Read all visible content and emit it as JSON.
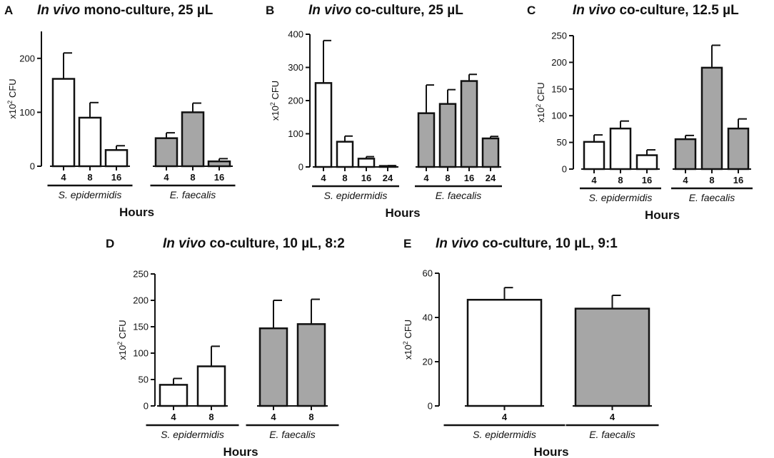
{
  "figure": {
    "bar_colors": {
      "S. epidermidis": "#ffffff",
      "E. faecalis": "#a6a6a6"
    }
  },
  "chart_data": [
    {
      "panel": "A",
      "type": "bar",
      "title": "In vivo mono-culture, 25 µL",
      "title_italic": "In vivo",
      "title_rest": " mono-culture, 25 µL",
      "xlabel": "Hours",
      "ylabel_main": "x10",
      "ylabel_sup": "2",
      "ylabel_tail": " CFU",
      "ylim": [
        0,
        250
      ],
      "yticks": [
        0,
        100,
        200
      ],
      "ytick_labels": [
        "0",
        "100",
        "200"
      ],
      "groups": [
        {
          "name": "S. epidermidis",
          "categories": [
            "4",
            "8",
            "16"
          ],
          "values": [
            162,
            90,
            30
          ],
          "errors": [
            48,
            28,
            8
          ]
        },
        {
          "name": "E. faecalis",
          "categories": [
            "4",
            "8",
            "16"
          ],
          "values": [
            52,
            100,
            9
          ],
          "errors": [
            10,
            17,
            5
          ]
        }
      ]
    },
    {
      "panel": "B",
      "type": "bar",
      "title": "In vivo co-culture,  25 µL",
      "title_italic": "In vivo",
      "title_rest": " co-culture,  25 µL",
      "xlabel": "Hours",
      "ylabel_main": "x10",
      "ylabel_sup": "2",
      "ylabel_tail": " CFU",
      "ylim": [
        0,
        400
      ],
      "yticks": [
        0,
        100,
        200,
        300,
        400
      ],
      "ytick_labels": [
        "0",
        "100",
        "200",
        "300",
        "400"
      ],
      "groups": [
        {
          "name": "S. epidermidis",
          "categories": [
            "4",
            "8",
            "16",
            "24"
          ],
          "values": [
            253,
            76,
            25,
            3
          ],
          "errors": [
            128,
            17,
            6,
            1
          ]
        },
        {
          "name": "E. faecalis",
          "categories": [
            "4",
            "8",
            "16",
            "24"
          ],
          "values": [
            162,
            190,
            259,
            86
          ],
          "errors": [
            85,
            43,
            20,
            6
          ]
        }
      ]
    },
    {
      "panel": "C",
      "type": "bar",
      "title": "In vivo co-culture, 12.5 µL",
      "title_italic": "In vivo",
      "title_rest": " co-culture, 12.5 µL",
      "xlabel": "Hours",
      "ylabel_main": "x10",
      "ylabel_sup": "2",
      "ylabel_tail": " CFU",
      "ylim": [
        0,
        250
      ],
      "yticks": [
        0,
        50,
        100,
        150,
        200,
        250
      ],
      "ytick_labels": [
        "0",
        "50",
        "100",
        "150",
        "200",
        "250"
      ],
      "groups": [
        {
          "name": "S. epidermidis",
          "categories": [
            "4",
            "8",
            "16"
          ],
          "values": [
            51,
            76,
            26
          ],
          "errors": [
            13,
            14,
            10
          ]
        },
        {
          "name": "E. faecalis",
          "categories": [
            "4",
            "8",
            "16"
          ],
          "values": [
            56,
            190,
            76
          ],
          "errors": [
            7,
            42,
            18
          ]
        }
      ]
    },
    {
      "panel": "D",
      "type": "bar",
      "title": "In vivo co-culture, 10 µL, 8:2",
      "title_italic": "In vivo",
      "title_rest": " co-culture, 10 µL, 8:2",
      "xlabel": "Hours",
      "ylabel_main": "x10",
      "ylabel_sup": "2",
      "ylabel_tail": " CFU",
      "ylim": [
        0,
        250
      ],
      "yticks": [
        0,
        50,
        100,
        150,
        200,
        250
      ],
      "ytick_labels": [
        "0",
        "50",
        "100",
        "150",
        "200",
        "250"
      ],
      "groups": [
        {
          "name": "S. epidermidis",
          "categories": [
            "4",
            "8"
          ],
          "values": [
            40,
            75
          ],
          "errors": [
            12,
            38
          ]
        },
        {
          "name": "E. faecalis",
          "categories": [
            "4",
            "8"
          ],
          "values": [
            147,
            155
          ],
          "errors": [
            53,
            47
          ]
        }
      ]
    },
    {
      "panel": "E",
      "type": "bar",
      "title": "In vivo co-culture, 10 µL, 9:1",
      "title_italic": "In vivo",
      "title_rest": " co-culture, 10 µL, 9:1",
      "xlabel": "Hours",
      "ylabel_main": "x10",
      "ylabel_sup": "2",
      "ylabel_tail": " CFU",
      "ylim": [
        0,
        60
      ],
      "yticks": [
        0,
        20,
        40,
        60
      ],
      "ytick_labels": [
        "0",
        "20",
        "40",
        "60"
      ],
      "groups": [
        {
          "name": "S. epidermidis",
          "categories": [
            "4"
          ],
          "values": [
            48
          ],
          "errors": [
            5.5
          ]
        },
        {
          "name": "E. faecalis",
          "categories": [
            "4"
          ],
          "values": [
            44
          ],
          "errors": [
            6
          ]
        }
      ]
    }
  ]
}
